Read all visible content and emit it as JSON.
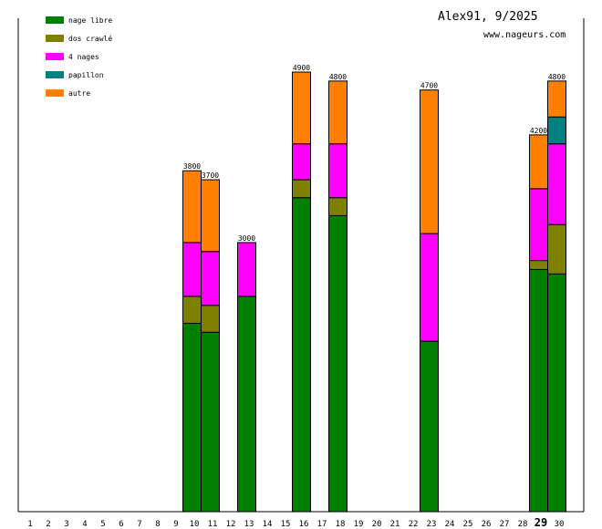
{
  "chart_data": {
    "type": "bar",
    "stacked": true,
    "title": "Alex91, 9/2025",
    "subtitle": "www.nageurs.com",
    "xlabel": "",
    "ylabel": "",
    "ylim": [
      0,
      5500
    ],
    "categories": [
      "1",
      "2",
      "3",
      "4",
      "5",
      "6",
      "7",
      "8",
      "9",
      "10",
      "11",
      "12",
      "13",
      "14",
      "15",
      "16",
      "17",
      "18",
      "19",
      "20",
      "21",
      "22",
      "23",
      "24",
      "25",
      "26",
      "27",
      "28",
      "29",
      "30"
    ],
    "highlight_category": "29",
    "legend_position": "top-left",
    "series": [
      {
        "name": "nage libre",
        "color": "#008000",
        "values": [
          0,
          0,
          0,
          0,
          0,
          0,
          0,
          0,
          0,
          2100,
          2000,
          0,
          2400,
          0,
          0,
          3500,
          0,
          3300,
          0,
          0,
          0,
          0,
          1900,
          0,
          0,
          0,
          0,
          0,
          2700,
          2650
        ]
      },
      {
        "name": "dos crawlé",
        "color": "#808000",
        "values": [
          0,
          0,
          0,
          0,
          0,
          0,
          0,
          0,
          0,
          300,
          300,
          0,
          0,
          0,
          0,
          200,
          0,
          200,
          0,
          0,
          0,
          0,
          0,
          0,
          0,
          0,
          0,
          0,
          100,
          550
        ]
      },
      {
        "name": "4 nages",
        "color": "#ff00ff",
        "values": [
          0,
          0,
          0,
          0,
          0,
          0,
          0,
          0,
          0,
          600,
          600,
          0,
          600,
          0,
          0,
          400,
          0,
          600,
          0,
          0,
          0,
          0,
          1200,
          0,
          0,
          0,
          0,
          0,
          800,
          900
        ]
      },
      {
        "name": "papillon",
        "color": "#008080",
        "values": [
          0,
          0,
          0,
          0,
          0,
          0,
          0,
          0,
          0,
          0,
          0,
          0,
          0,
          0,
          0,
          0,
          0,
          0,
          0,
          0,
          0,
          0,
          0,
          0,
          0,
          0,
          0,
          0,
          0,
          300
        ]
      },
      {
        "name": "autre",
        "color": "#ff8000",
        "values": [
          0,
          0,
          0,
          0,
          0,
          0,
          0,
          0,
          0,
          800,
          800,
          0,
          0,
          0,
          0,
          800,
          0,
          700,
          0,
          0,
          0,
          0,
          1600,
          0,
          0,
          0,
          0,
          0,
          600,
          400
        ]
      }
    ],
    "totals": [
      0,
      0,
      0,
      0,
      0,
      0,
      0,
      0,
      0,
      3800,
      3700,
      0,
      3000,
      0,
      0,
      4900,
      0,
      4800,
      0,
      0,
      0,
      0,
      4700,
      0,
      0,
      0,
      0,
      0,
      4200,
      4800
    ]
  }
}
